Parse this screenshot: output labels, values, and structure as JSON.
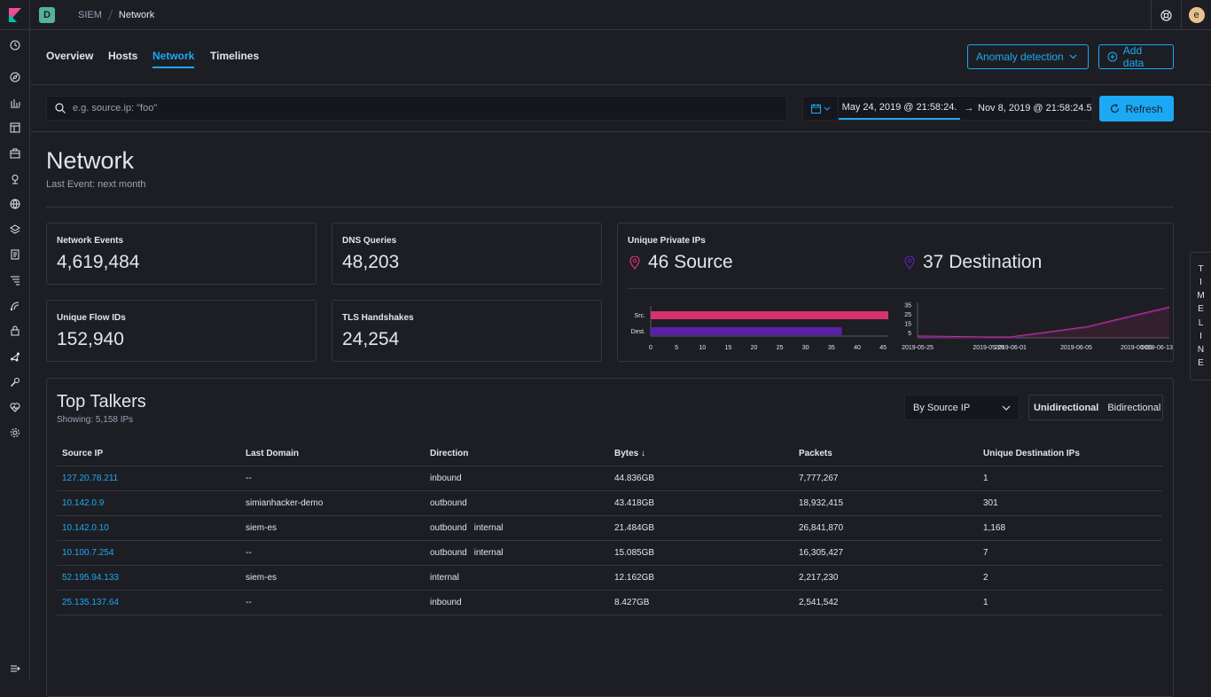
{
  "topbar": {
    "space_initial": "D",
    "breadcrumb_app": "SIEM",
    "breadcrumb_page": "Network",
    "avatar_initial": "e"
  },
  "tabs": [
    "Overview",
    "Hosts",
    "Network",
    "Timelines"
  ],
  "active_tab": "Network",
  "actions": {
    "anomaly_label": "Anomaly detection",
    "add_data_label": "Add data"
  },
  "query": {
    "placeholder": "e.g. source.ip: \"foo\"",
    "date_start": "May 24, 2019 @ 21:58:24.",
    "date_arrow": "→",
    "date_end": "Nov 8, 2019 @ 21:58:24.5",
    "refresh_label": "Refresh"
  },
  "page": {
    "title": "Network",
    "last_event": "Last Event: next month"
  },
  "stats": {
    "network_events": {
      "label": "Network Events",
      "value": "4,619,484"
    },
    "dns_queries": {
      "label": "DNS Queries",
      "value": "48,203"
    },
    "unique_flow_ids": {
      "label": "Unique Flow IDs",
      "value": "152,940"
    },
    "tls_handshakes": {
      "label": "TLS Handshakes",
      "value": "24,254"
    }
  },
  "private_ips": {
    "label": "Unique Private IPs",
    "source": "46 Source",
    "destination": "37 Destination",
    "colors": {
      "source": "#d6336c",
      "destination": "#5b1fa8"
    }
  },
  "chart_data": [
    {
      "type": "bar",
      "orientation": "horizontal",
      "categories": [
        "Src.",
        "Dest."
      ],
      "values": [
        46,
        37
      ],
      "xticks": [
        0,
        5,
        10,
        15,
        20,
        25,
        30,
        35,
        40,
        45
      ],
      "xlim": [
        0,
        46
      ]
    },
    {
      "type": "area",
      "xticks": [
        "2019-05-25",
        "2019-05-29",
        "2019-06-01",
        "2019-06-05",
        "2019-06-09",
        "2019-06-13"
      ],
      "yticks": [
        5,
        15,
        25,
        35
      ],
      "ylim": [
        0,
        38
      ],
      "series": [
        {
          "x": [
            0,
            13,
            17,
            31,
            38,
            46
          ],
          "values": [
            2,
            1,
            1,
            12,
            22,
            33
          ]
        }
      ]
    }
  ],
  "timeline_tab": [
    "T",
    "I",
    "M",
    "E",
    "L",
    "I",
    "N",
    "E"
  ],
  "top_talkers": {
    "title": "Top Talkers",
    "showing": "Showing: 5,158 IPs",
    "select_value": "By Source IP",
    "toggle": [
      "Unidirectional",
      "Bidirectional"
    ],
    "columns": [
      "Source IP",
      "Last Domain",
      "Direction",
      "Bytes",
      "Packets",
      "Unique Destination IPs"
    ],
    "sort_arrow": "↓",
    "rows": [
      {
        "ip": "127.20.78.211",
        "domain": "--",
        "direction": [
          "inbound"
        ],
        "bytes": "44.836GB",
        "packets": "7,777,267",
        "unique": "1"
      },
      {
        "ip": "10.142.0.9",
        "domain": "simianhacker-demo",
        "direction": [
          "outbound"
        ],
        "bytes": "43.418GB",
        "packets": "18,932,415",
        "unique": "301"
      },
      {
        "ip": "10.142.0.10",
        "domain": "siem-es",
        "direction": [
          "outbound",
          "internal"
        ],
        "bytes": "21.484GB",
        "packets": "26,841,870",
        "unique": "1,168"
      },
      {
        "ip": "10.100.7.254",
        "domain": "--",
        "direction": [
          "outbound",
          "internal"
        ],
        "bytes": "15.085GB",
        "packets": "16,305,427",
        "unique": "7"
      },
      {
        "ip": "52.195.94.133",
        "domain": "siem-es",
        "direction": [
          "internal"
        ],
        "bytes": "12.162GB",
        "packets": "2,217,230",
        "unique": "2"
      },
      {
        "ip": "25.135.137.64",
        "domain": "--",
        "direction": [
          "inbound"
        ],
        "bytes": "8.427GB",
        "packets": "2,541,542",
        "unique": "1"
      }
    ]
  },
  "sidenav_icons": [
    "clock-icon",
    "compass-icon",
    "bar-chart-icon",
    "dashboard-icon",
    "briefcase-icon",
    "map-pin-icon",
    "globe-icon",
    "layers-icon",
    "document-icon",
    "filter-icon",
    "apm-icon",
    "lock-icon",
    "graph-icon",
    "wrench-icon",
    "heartbeat-icon",
    "gear-icon"
  ]
}
